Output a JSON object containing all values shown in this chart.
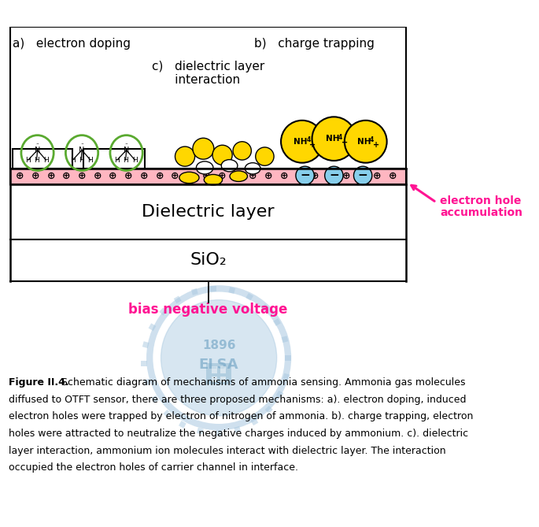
{
  "title_a": "a)   electron doping",
  "title_b": "b)   charge trapping",
  "title_c_line1": "c)   dielectric layer",
  "title_c_line2": "      interaction",
  "label_dielectric": "Dielectric layer",
  "label_sio2": "SiO₂",
  "label_bias": "bias negative voltage",
  "label_eh_line1": "electron hole",
  "label_eh_line2": "accumulation",
  "caption_bold": "Figure II.4.",
  "caption_rest": " Schematic diagram of mechanisms of ammonia sensing. Ammonia gas molecules",
  "caption_lines": [
    "diffused to OTFT sensor, there are three proposed mechanisms: a). electron doping, induced",
    "electron holes were trapped by electron of nitrogen of ammonia. b). charge trapping, electron",
    "holes were attracted to neutralize the negative charges induced by ammonium. c). dielectric",
    "layer interaction, ammonium ion molecules interact with dielectric layer. The interaction",
    "occupied the electron holes of carrier channel in interface."
  ],
  "bg_color": "#ffffff",
  "pink_color": "#ffb6c1",
  "yellow_color": "#FFD700",
  "green_color": "#5aaa30",
  "blue_color": "#87CEEB",
  "magenta_color": "#FF1493",
  "watermark_color": "#a8c8e0",
  "watermark_text_color": "#7aaac8"
}
